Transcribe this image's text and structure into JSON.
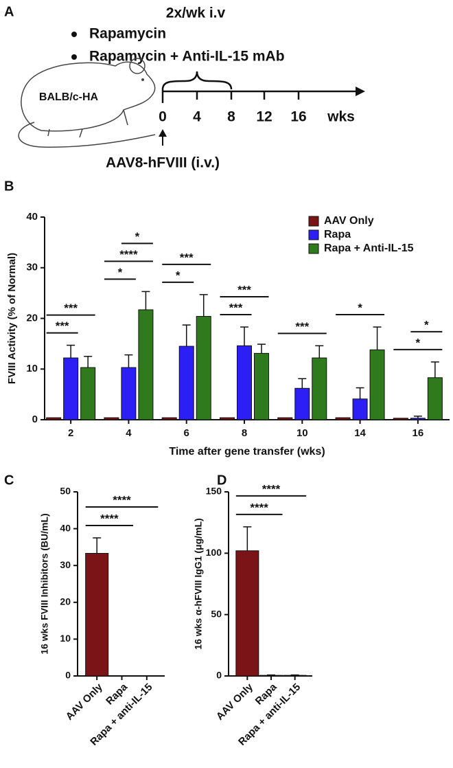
{
  "panel_labels": [
    "A",
    "B",
    "C",
    "D"
  ],
  "diagram": {
    "dosing": "2x/wk i.v",
    "treatments": [
      "Rapamycin",
      "Rapamycin + Anti-IL-15 mAb"
    ],
    "mouse": "BALB/c-HA",
    "timeline_labels": [
      "0",
      "4",
      "8",
      "12",
      "16",
      "wks"
    ],
    "injection": "AAV8-hFVIII (i.v.)"
  },
  "chart_data": [
    {
      "type": "grouped-bar",
      "x_label": "Time after gene transfer (wks)",
      "y_label": "FVIII Activity (% of Normal)",
      "categories": [
        "2",
        "4",
        "6",
        "8",
        "10",
        "14",
        "16"
      ],
      "series": [
        {
          "name": "AAV Only",
          "color": "#7b1416",
          "values": [
            0.4,
            0.4,
            0.4,
            0.4,
            0.4,
            0.4,
            0.3
          ],
          "errors": [
            0,
            0,
            0,
            0,
            0,
            0,
            0
          ]
        },
        {
          "name": "Rapa",
          "color": "#2b1ff5",
          "values": [
            12.2,
            10.3,
            14.5,
            14.6,
            6.2,
            4.1,
            0.3
          ],
          "errors": [
            2.5,
            2.5,
            4.2,
            3.7,
            1.9,
            2.2,
            0.4
          ]
        },
        {
          "name": "Rapa + Anti-IL-15",
          "color": "#2f7a1c",
          "values": [
            10.3,
            21.7,
            20.4,
            13.1,
            12.2,
            13.8,
            8.3
          ],
          "errors": [
            2.2,
            3.6,
            4.3,
            1.8,
            2.4,
            4.5,
            3.1
          ]
        }
      ],
      "ylim": [
        0,
        40
      ],
      "yticks": [
        0,
        10,
        20,
        30,
        40
      ],
      "legend": "top-right",
      "significance": [
        {
          "category": 0,
          "from": 0,
          "to": 1,
          "label": "***"
        },
        {
          "category": 0,
          "from": 0,
          "to": 2,
          "label": "***"
        },
        {
          "category": 1,
          "from": 0,
          "to": 1,
          "label": "*"
        },
        {
          "category": 1,
          "from": 0,
          "to": 2,
          "label": "****"
        },
        {
          "category": 1,
          "from": 1,
          "to": 2,
          "label": "*"
        },
        {
          "category": 2,
          "from": 0,
          "to": 1,
          "label": "*"
        },
        {
          "category": 2,
          "from": 0,
          "to": 2,
          "label": "***"
        },
        {
          "category": 3,
          "from": 0,
          "to": 1,
          "label": "***"
        },
        {
          "category": 3,
          "from": 0,
          "to": 2,
          "label": "***"
        },
        {
          "category": 4,
          "from": 0,
          "to": 2,
          "label": "***"
        },
        {
          "category": 5,
          "from": 0,
          "to": 2,
          "label": "*"
        },
        {
          "category": 6,
          "from": 0,
          "to": 2,
          "label": "*"
        },
        {
          "category": 6,
          "from": 1,
          "to": 2,
          "label": "*"
        }
      ]
    },
    {
      "type": "bar",
      "y_label": "16 wks FVIII Inhibitors (BU/mL)",
      "categories": [
        "AAV Only",
        "Rapa",
        "Rapa + anti-IL-15"
      ],
      "values": [
        33.3,
        0,
        0
      ],
      "errors": [
        4.2,
        0,
        0
      ],
      "color": "#7b1416",
      "ylim": [
        0,
        50
      ],
      "yticks": [
        0,
        10,
        20,
        30,
        40,
        50
      ],
      "significance": [
        {
          "from": 0,
          "to": 1,
          "label": "****"
        },
        {
          "from": 0,
          "to": 2,
          "label": "****"
        }
      ]
    },
    {
      "type": "bar",
      "y_label": "16 wks α-hFVIII IgG1 (μg/mL)",
      "categories": [
        "AAV Only",
        "Rapa",
        "Rapa + anti-IL-15"
      ],
      "values": [
        102,
        0.5,
        0.5
      ],
      "errors": [
        19.5,
        0.3,
        0.3
      ],
      "color": "#7b1416",
      "ylim": [
        0,
        150
      ],
      "yticks": [
        0,
        50,
        100,
        150
      ],
      "significance": [
        {
          "from": 0,
          "to": 1,
          "label": "****"
        },
        {
          "from": 0,
          "to": 2,
          "label": "****"
        }
      ]
    }
  ]
}
